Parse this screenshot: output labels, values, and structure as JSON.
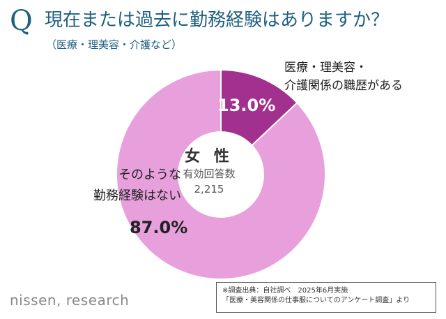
{
  "question": {
    "mark": "Q",
    "title": "現在または過去に勤務経験はありますか？",
    "subtitle": "（医療・理美容・介護など）"
  },
  "center": {
    "title": "女 性",
    "subtitle": "有効回答数",
    "n": "2,215"
  },
  "labels": {
    "small_line1": "医療・理美容・",
    "small_line2": "介護関係の職歴がある",
    "large_line1": "そのような",
    "large_line2": "勤務経験はない",
    "small_pct": "13.0%",
    "large_pct": "87.0%"
  },
  "footer": {
    "brand": "nissen, research",
    "source_line1": "※調査出典：自社調べ　2025年6月実施",
    "source_line2": "「医療・美容関係の仕事服についてのアンケート調査」より"
  },
  "chart_data": {
    "type": "pie",
    "categories": [
      "医療・理美容・介護関係の職歴がある",
      "そのような勤務経験はない"
    ],
    "values": [
      13.0,
      87.0
    ],
    "colors": [
      "#a2308e",
      "#e7a0dc"
    ],
    "donut": true,
    "center_label": "女 性"
  }
}
